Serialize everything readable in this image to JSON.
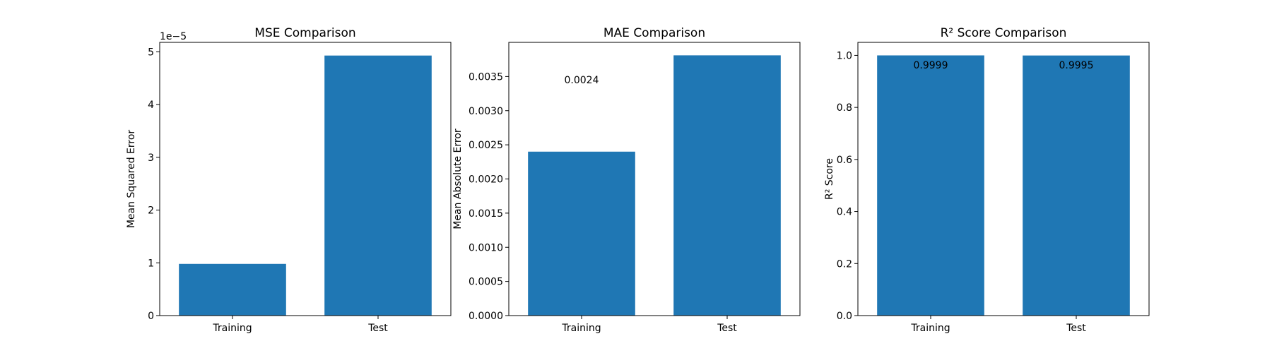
{
  "colors": {
    "bar": "#1f77b4",
    "axis": "#000000",
    "background": "#ffffff"
  },
  "chart_data": [
    {
      "type": "bar",
      "title": "MSE Comparison",
      "xlabel": "",
      "ylabel": "Mean Squared Error",
      "categories": [
        "Training",
        "Test"
      ],
      "values": [
        0.98,
        4.93
      ],
      "ylim": [
        0,
        5.18
      ],
      "yticks": [
        0,
        1,
        2,
        3,
        4,
        5
      ],
      "ytick_labels": [
        "0",
        "1",
        "2",
        "3",
        "4",
        "5"
      ],
      "offset_label": "1e−5",
      "data_labels": [],
      "grid": false
    },
    {
      "type": "bar",
      "title": "MAE Comparison",
      "xlabel": "",
      "ylabel": "Mean Absolute Error",
      "categories": [
        "Training",
        "Test"
      ],
      "values": [
        0.0024,
        0.00381
      ],
      "ylim": [
        0,
        0.004
      ],
      "yticks": [
        0,
        0.0005,
        0.001,
        0.0015,
        0.002,
        0.0025,
        0.003,
        0.0035
      ],
      "ytick_labels": [
        "0.0000",
        "0.0005",
        "0.0010",
        "0.0015",
        "0.0020",
        "0.0025",
        "0.0030",
        "0.0035"
      ],
      "offset_label": "",
      "data_labels": [
        {
          "category": "Training",
          "text": "0.0024",
          "y": 0.00345
        }
      ],
      "grid": false
    },
    {
      "type": "bar",
      "title": "R² Score Comparison",
      "xlabel": "",
      "ylabel": "R² Score",
      "categories": [
        "Training",
        "Test"
      ],
      "values": [
        0.9999,
        0.9995
      ],
      "ylim": [
        0,
        1.05
      ],
      "yticks": [
        0,
        0.2,
        0.4,
        0.6,
        0.8,
        1.0
      ],
      "ytick_labels": [
        "0.0",
        "0.2",
        "0.4",
        "0.6",
        "0.8",
        "1.0"
      ],
      "offset_label": "",
      "data_labels": [
        {
          "category": "Training",
          "text": "0.9999",
          "y": 0.963
        },
        {
          "category": "Test",
          "text": "0.9995",
          "y": 0.963
        }
      ],
      "grid": false
    }
  ]
}
